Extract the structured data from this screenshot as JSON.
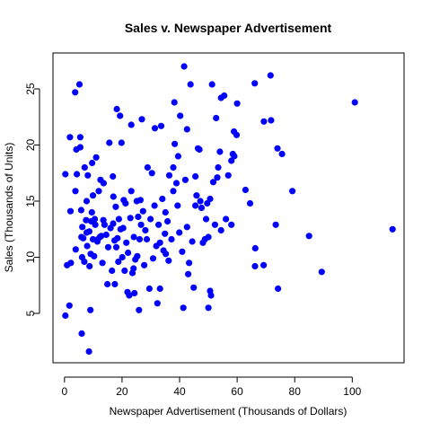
{
  "chart_data": {
    "type": "scatter",
    "title": "Sales v. Newspaper Advertisement",
    "xlabel": "Newspaper Advertisement (Thousands of Dollars)",
    "ylabel": "Sales (Thousands of Units)",
    "xlim": [
      -4,
      118
    ],
    "ylim": [
      0.6,
      28.2
    ],
    "xticks": [
      0,
      20,
      40,
      60,
      80,
      100
    ],
    "yticks": [
      5,
      10,
      15,
      20,
      25
    ],
    "grid": false,
    "point_color": "#0000ff",
    "points": [
      [
        0.3,
        4.8
      ],
      [
        0.9,
        9.3
      ],
      [
        0.3,
        17.4
      ],
      [
        1.9,
        20.7
      ],
      [
        2.2,
        9.5
      ],
      [
        2.1,
        14.1
      ],
      [
        1.7,
        5.7
      ],
      [
        3.7,
        24.7
      ],
      [
        4.3,
        17.4
      ],
      [
        4.1,
        19.6
      ],
      [
        3.8,
        15.9
      ],
      [
        3.9,
        10.7
      ],
      [
        5.2,
        25.4
      ],
      [
        5.9,
        11.8
      ],
      [
        5.8,
        14.2
      ],
      [
        6.0,
        3.2
      ],
      [
        5.5,
        20.7
      ],
      [
        5.5,
        19.8
      ],
      [
        6.1,
        10.0
      ],
      [
        6.2,
        12.7
      ],
      [
        6.5,
        11.7
      ],
      [
        6.9,
        9.6
      ],
      [
        7.5,
        13.3
      ],
      [
        7.0,
        18.0
      ],
      [
        7.7,
        15.0
      ],
      [
        7.7,
        12.2
      ],
      [
        7.9,
        11.0
      ],
      [
        8.1,
        17.3
      ],
      [
        8.5,
        1.6
      ],
      [
        8.6,
        12.3
      ],
      [
        8.7,
        9.2
      ],
      [
        9.3,
        13.2
      ],
      [
        9.1,
        10.3
      ],
      [
        9.5,
        14.0
      ],
      [
        9.6,
        18.4
      ],
      [
        9.0,
        5.3
      ],
      [
        9.9,
        15.5
      ],
      [
        9.9,
        11.6
      ],
      [
        10.3,
        10.1
      ],
      [
        10.5,
        13.4
      ],
      [
        10.7,
        12.9
      ],
      [
        11.0,
        18.9
      ],
      [
        11.4,
        11.4
      ],
      [
        11.9,
        15.9
      ],
      [
        11.6,
        11.6
      ],
      [
        12.3,
        11.8
      ],
      [
        12.5,
        16.9
      ],
      [
        12.8,
        11.9
      ],
      [
        13.6,
        16.6
      ],
      [
        13.5,
        13.3
      ],
      [
        13.2,
        9.5
      ],
      [
        13.9,
        12.9
      ],
      [
        14.5,
        12.0
      ],
      [
        14.9,
        7.6
      ],
      [
        15.2,
        10.9
      ],
      [
        15.6,
        20.2
      ],
      [
        16.0,
        12.6
      ],
      [
        16.5,
        8.8
      ],
      [
        16.9,
        13.0
      ],
      [
        16.8,
        17.2
      ],
      [
        17.0,
        15.4
      ],
      [
        17.4,
        11.5
      ],
      [
        17.5,
        7.6
      ],
      [
        17.8,
        14.5
      ],
      [
        18.0,
        10.9
      ],
      [
        18.2,
        23.2
      ],
      [
        18.4,
        11.7
      ],
      [
        18.7,
        9.6
      ],
      [
        18.9,
        13.4
      ],
      [
        19.3,
        22.6
      ],
      [
        19.5,
        12.5
      ],
      [
        19.8,
        20.2
      ],
      [
        20.1,
        10.0
      ],
      [
        20.4,
        12.6
      ],
      [
        20.6,
        15.1
      ],
      [
        20.9,
        8.8
      ],
      [
        21.2,
        14.8
      ],
      [
        21.5,
        11.3
      ],
      [
        21.9,
        6.9
      ],
      [
        22.1,
        10.4
      ],
      [
        22.5,
        6.6
      ],
      [
        22.9,
        13.5
      ],
      [
        23.2,
        15.9
      ],
      [
        23.2,
        21.8
      ],
      [
        23.6,
        8.6
      ],
      [
        24.0,
        9.0
      ],
      [
        24.1,
        11.8
      ],
      [
        24.3,
        6.8
      ],
      [
        24.6,
        9.8
      ],
      [
        25.1,
        15.0
      ],
      [
        25.3,
        10.1
      ],
      [
        25.6,
        13.6
      ],
      [
        25.9,
        5.3
      ],
      [
        26.1,
        11.6
      ],
      [
        26.4,
        15.1
      ],
      [
        26.6,
        12.9
      ],
      [
        26.9,
        22.3
      ],
      [
        27.3,
        14.1
      ],
      [
        27.7,
        9.3
      ],
      [
        28.1,
        12.4
      ],
      [
        28.6,
        11.6
      ],
      [
        28.9,
        18.0
      ],
      [
        29.5,
        7.2
      ],
      [
        29.9,
        13.4
      ],
      [
        30.4,
        17.5
      ],
      [
        30.8,
        9.9
      ],
      [
        31.3,
        14.6
      ],
      [
        31.9,
        11.0
      ],
      [
        31.4,
        21.5
      ],
      [
        32.3,
        5.9
      ],
      [
        32.7,
        12.9
      ],
      [
        33.2,
        11.3
      ],
      [
        33.2,
        7.2
      ],
      [
        33.6,
        21.7
      ],
      [
        34.0,
        15.2
      ],
      [
        34.4,
        10.6
      ],
      [
        34.9,
        12.1
      ],
      [
        35.1,
        14.0
      ],
      [
        35.2,
        10.3
      ],
      [
        35.8,
        13.2
      ],
      [
        36.4,
        17.3
      ],
      [
        36.2,
        9.7
      ],
      [
        37.2,
        11.6
      ],
      [
        37.8,
        15.9
      ],
      [
        37.8,
        18.0
      ],
      [
        38.2,
        23.8
      ],
      [
        38.3,
        20.1
      ],
      [
        38.9,
        16.6
      ],
      [
        39.3,
        14.6
      ],
      [
        39.5,
        19.0
      ],
      [
        39.9,
        12.2
      ],
      [
        40.2,
        22.6
      ],
      [
        40.9,
        10.5
      ],
      [
        41.3,
        5.5
      ],
      [
        41.6,
        27.0
      ],
      [
        42.0,
        16.9
      ],
      [
        42.6,
        12.7
      ],
      [
        42.6,
        21.4
      ],
      [
        43.0,
        8.5
      ],
      [
        43.3,
        9.5
      ],
      [
        43.8,
        25.4
      ],
      [
        44.4,
        11.4
      ],
      [
        44.9,
        7.3
      ],
      [
        45.5,
        14.6
      ],
      [
        45.5,
        17.2
      ],
      [
        45.9,
        15.5
      ],
      [
        46.4,
        19.7
      ],
      [
        46.9,
        19.6
      ],
      [
        47.2,
        15.0
      ],
      [
        47.6,
        14.4
      ],
      [
        48.1,
        11.3
      ],
      [
        48.8,
        11.6
      ],
      [
        49.2,
        13.4
      ],
      [
        49.6,
        14.8
      ],
      [
        50.0,
        5.5
      ],
      [
        50.0,
        11.8
      ],
      [
        50.6,
        7.0
      ],
      [
        50.6,
        15.2
      ],
      [
        50.9,
        6.6
      ],
      [
        51.3,
        25.4
      ],
      [
        51.7,
        16.7
      ],
      [
        52.3,
        12.9
      ],
      [
        52.7,
        22.4
      ],
      [
        53.1,
        17.1
      ],
      [
        53.4,
        18.0
      ],
      [
        54.0,
        19.4
      ],
      [
        54.4,
        24.2
      ],
      [
        54.4,
        12.4
      ],
      [
        55.5,
        24.4
      ],
      [
        56.1,
        13.4
      ],
      [
        56.9,
        17.3
      ],
      [
        58.0,
        12.9
      ],
      [
        58.0,
        18.6
      ],
      [
        58.5,
        19.2
      ],
      [
        58.9,
        21.2
      ],
      [
        59.0,
        19.0
      ],
      [
        59.8,
        20.9
      ],
      [
        60.0,
        23.7
      ],
      [
        62.9,
        16.0
      ],
      [
        64.5,
        14.8
      ],
      [
        66.1,
        25.5
      ],
      [
        66.3,
        10.8
      ],
      [
        66.2,
        9.2
      ],
      [
        69.2,
        9.3
      ],
      [
        69.3,
        22.1
      ],
      [
        71.6,
        26.2
      ],
      [
        71.8,
        22.2
      ],
      [
        73.4,
        12.9
      ],
      [
        74.0,
        19.7
      ],
      [
        74.2,
        7.2
      ],
      [
        75.6,
        19.2
      ],
      [
        79.2,
        15.9
      ],
      [
        85.0,
        11.9
      ],
      [
        89.4,
        8.7
      ],
      [
        100.9,
        23.8
      ],
      [
        114.0,
        12.5
      ]
    ]
  }
}
